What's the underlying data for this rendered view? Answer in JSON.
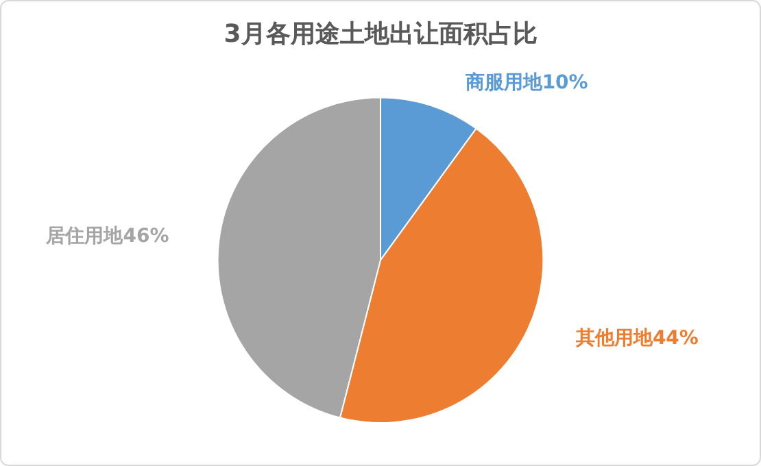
{
  "chart_data": {
    "type": "pie",
    "title": "3月各用途土地出让面积占比",
    "categories": [
      "商服用地",
      "其他用地",
      "居住用地"
    ],
    "values": [
      10,
      44,
      46
    ],
    "value_labels": [
      "10%",
      "44%",
      "46%"
    ],
    "colors": [
      "#5b9bd5",
      "#ed7d31",
      "#a5a5a5"
    ],
    "legend": false
  }
}
